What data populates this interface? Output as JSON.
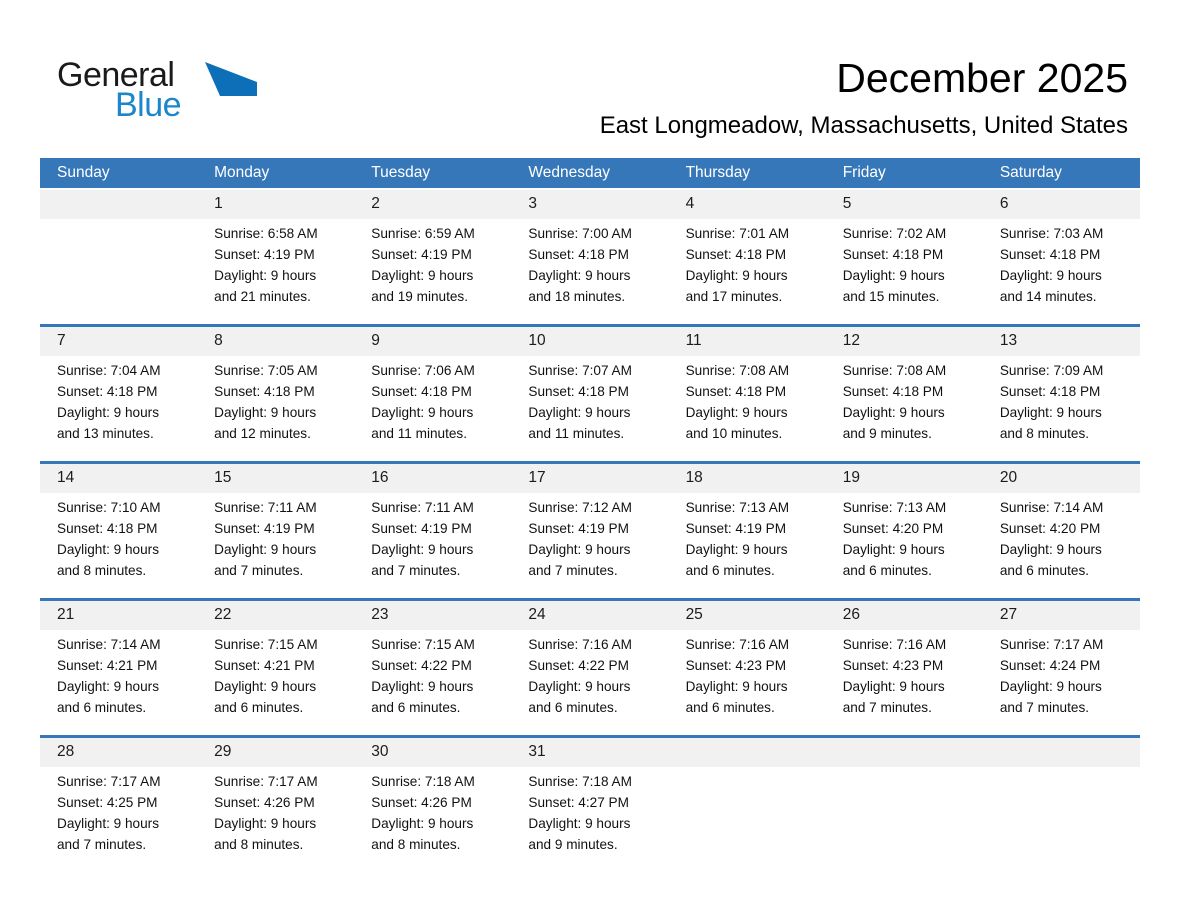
{
  "logo": {
    "text_top": "General",
    "text_bottom": "Blue",
    "triangle_icon": "blue-flag-triangle"
  },
  "header": {
    "title": "December 2025",
    "subtitle": "East Longmeadow, Massachusetts, United States"
  },
  "colors": {
    "header_blue": "#3577b9",
    "row_stripe": "#f1f1f1",
    "logo_blue": "#1b86ca",
    "logo_triangle": "#0d6fb8"
  },
  "calendar": {
    "weekdays": [
      "Sunday",
      "Monday",
      "Tuesday",
      "Wednesday",
      "Thursday",
      "Friday",
      "Saturday"
    ],
    "weeks": [
      [
        null,
        {
          "n": "1",
          "lines": [
            "Sunrise: 6:58 AM",
            "Sunset: 4:19 PM",
            "Daylight: 9 hours",
            "and 21 minutes."
          ]
        },
        {
          "n": "2",
          "lines": [
            "Sunrise: 6:59 AM",
            "Sunset: 4:19 PM",
            "Daylight: 9 hours",
            "and 19 minutes."
          ]
        },
        {
          "n": "3",
          "lines": [
            "Sunrise: 7:00 AM",
            "Sunset: 4:18 PM",
            "Daylight: 9 hours",
            "and 18 minutes."
          ]
        },
        {
          "n": "4",
          "lines": [
            "Sunrise: 7:01 AM",
            "Sunset: 4:18 PM",
            "Daylight: 9 hours",
            "and 17 minutes."
          ]
        },
        {
          "n": "5",
          "lines": [
            "Sunrise: 7:02 AM",
            "Sunset: 4:18 PM",
            "Daylight: 9 hours",
            "and 15 minutes."
          ]
        },
        {
          "n": "6",
          "lines": [
            "Sunrise: 7:03 AM",
            "Sunset: 4:18 PM",
            "Daylight: 9 hours",
            "and 14 minutes."
          ]
        }
      ],
      [
        {
          "n": "7",
          "lines": [
            "Sunrise: 7:04 AM",
            "Sunset: 4:18 PM",
            "Daylight: 9 hours",
            "and 13 minutes."
          ]
        },
        {
          "n": "8",
          "lines": [
            "Sunrise: 7:05 AM",
            "Sunset: 4:18 PM",
            "Daylight: 9 hours",
            "and 12 minutes."
          ]
        },
        {
          "n": "9",
          "lines": [
            "Sunrise: 7:06 AM",
            "Sunset: 4:18 PM",
            "Daylight: 9 hours",
            "and 11 minutes."
          ]
        },
        {
          "n": "10",
          "lines": [
            "Sunrise: 7:07 AM",
            "Sunset: 4:18 PM",
            "Daylight: 9 hours",
            "and 11 minutes."
          ]
        },
        {
          "n": "11",
          "lines": [
            "Sunrise: 7:08 AM",
            "Sunset: 4:18 PM",
            "Daylight: 9 hours",
            "and 10 minutes."
          ]
        },
        {
          "n": "12",
          "lines": [
            "Sunrise: 7:08 AM",
            "Sunset: 4:18 PM",
            "Daylight: 9 hours",
            "and 9 minutes."
          ]
        },
        {
          "n": "13",
          "lines": [
            "Sunrise: 7:09 AM",
            "Sunset: 4:18 PM",
            "Daylight: 9 hours",
            "and 8 minutes."
          ]
        }
      ],
      [
        {
          "n": "14",
          "lines": [
            "Sunrise: 7:10 AM",
            "Sunset: 4:18 PM",
            "Daylight: 9 hours",
            "and 8 minutes."
          ]
        },
        {
          "n": "15",
          "lines": [
            "Sunrise: 7:11 AM",
            "Sunset: 4:19 PM",
            "Daylight: 9 hours",
            "and 7 minutes."
          ]
        },
        {
          "n": "16",
          "lines": [
            "Sunrise: 7:11 AM",
            "Sunset: 4:19 PM",
            "Daylight: 9 hours",
            "and 7 minutes."
          ]
        },
        {
          "n": "17",
          "lines": [
            "Sunrise: 7:12 AM",
            "Sunset: 4:19 PM",
            "Daylight: 9 hours",
            "and 7 minutes."
          ]
        },
        {
          "n": "18",
          "lines": [
            "Sunrise: 7:13 AM",
            "Sunset: 4:19 PM",
            "Daylight: 9 hours",
            "and 6 minutes."
          ]
        },
        {
          "n": "19",
          "lines": [
            "Sunrise: 7:13 AM",
            "Sunset: 4:20 PM",
            "Daylight: 9 hours",
            "and 6 minutes."
          ]
        },
        {
          "n": "20",
          "lines": [
            "Sunrise: 7:14 AM",
            "Sunset: 4:20 PM",
            "Daylight: 9 hours",
            "and 6 minutes."
          ]
        }
      ],
      [
        {
          "n": "21",
          "lines": [
            "Sunrise: 7:14 AM",
            "Sunset: 4:21 PM",
            "Daylight: 9 hours",
            "and 6 minutes."
          ]
        },
        {
          "n": "22",
          "lines": [
            "Sunrise: 7:15 AM",
            "Sunset: 4:21 PM",
            "Daylight: 9 hours",
            "and 6 minutes."
          ]
        },
        {
          "n": "23",
          "lines": [
            "Sunrise: 7:15 AM",
            "Sunset: 4:22 PM",
            "Daylight: 9 hours",
            "and 6 minutes."
          ]
        },
        {
          "n": "24",
          "lines": [
            "Sunrise: 7:16 AM",
            "Sunset: 4:22 PM",
            "Daylight: 9 hours",
            "and 6 minutes."
          ]
        },
        {
          "n": "25",
          "lines": [
            "Sunrise: 7:16 AM",
            "Sunset: 4:23 PM",
            "Daylight: 9 hours",
            "and 6 minutes."
          ]
        },
        {
          "n": "26",
          "lines": [
            "Sunrise: 7:16 AM",
            "Sunset: 4:23 PM",
            "Daylight: 9 hours",
            "and 7 minutes."
          ]
        },
        {
          "n": "27",
          "lines": [
            "Sunrise: 7:17 AM",
            "Sunset: 4:24 PM",
            "Daylight: 9 hours",
            "and 7 minutes."
          ]
        }
      ],
      [
        {
          "n": "28",
          "lines": [
            "Sunrise: 7:17 AM",
            "Sunset: 4:25 PM",
            "Daylight: 9 hours",
            "and 7 minutes."
          ]
        },
        {
          "n": "29",
          "lines": [
            "Sunrise: 7:17 AM",
            "Sunset: 4:26 PM",
            "Daylight: 9 hours",
            "and 8 minutes."
          ]
        },
        {
          "n": "30",
          "lines": [
            "Sunrise: 7:18 AM",
            "Sunset: 4:26 PM",
            "Daylight: 9 hours",
            "and 8 minutes."
          ]
        },
        {
          "n": "31",
          "lines": [
            "Sunrise: 7:18 AM",
            "Sunset: 4:27 PM",
            "Daylight: 9 hours",
            "and 9 minutes."
          ]
        },
        null,
        null,
        null
      ]
    ]
  }
}
